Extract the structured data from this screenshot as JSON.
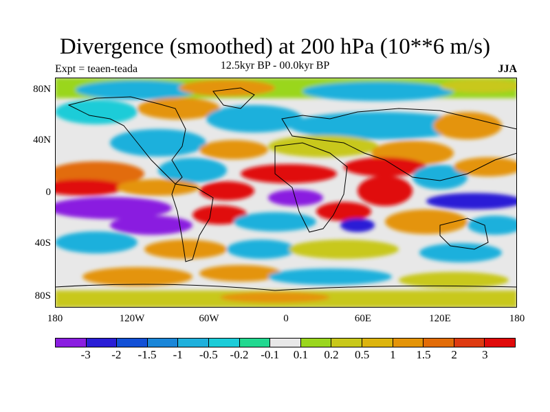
{
  "title": "Divergence (smoothed) at 200 hPa (10**6 m/s)",
  "left_label": "Expt = teaen-teada",
  "center_label": "12.5kyr BP - 00.0kyr BP",
  "right_label": "JJA",
  "y_ticks": [
    "80N",
    "40N",
    "0",
    "40S",
    "80S"
  ],
  "x_ticks": [
    "180",
    "120W",
    "60W",
    "0",
    "60E",
    "120E",
    "180"
  ],
  "colorbar": {
    "colors": [
      "#8a1ee0",
      "#2a1ed6",
      "#1250d6",
      "#1a86d8",
      "#1fb0dc",
      "#1cccd8",
      "#22d890",
      "#e8e8e8",
      "#9ad61e",
      "#c8c81a",
      "#dcb40e",
      "#e49408",
      "#e26c08",
      "#de3a10",
      "#e00a0a"
    ],
    "labels": [
      "-3",
      "-2",
      "-1.5",
      "-1",
      "-0.5",
      "-0.2",
      "-0.1",
      "0.1",
      "0.2",
      "0.5",
      "1",
      "1.5",
      "2",
      "3"
    ]
  },
  "map": {
    "background_color": "#e8e8e8",
    "palette": {
      "purple": "#8a1ee0",
      "blue": "#2a1ed6",
      "cyan": "#1fb0dc",
      "teal": "#1cccd8",
      "green": "#9ad61e",
      "yellow": "#c8c81a",
      "orange": "#e49408",
      "red": "#e00a0a",
      "redorange": "#e26c08"
    }
  }
}
